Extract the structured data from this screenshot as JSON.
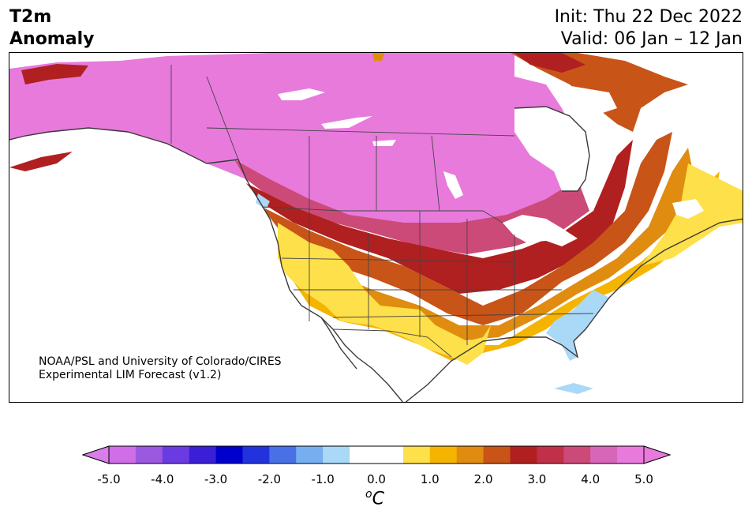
{
  "title": {
    "line1": "T2m",
    "line2": "Anomaly"
  },
  "dates": {
    "init": "Init: Thu 22 Dec 2022",
    "valid": "Valid: 06 Jan – 12 Jan"
  },
  "credit": {
    "line1": "NOAA/PSL and University of Colorado/CIRES",
    "line2": "Experimental LIM Forecast (v1.2)"
  },
  "colorbar": {
    "ticks": [
      "-5.0",
      "-4.0",
      "-3.0",
      "-2.0",
      "-1.0",
      "0.0",
      "1.0",
      "2.0",
      "3.0",
      "4.0",
      "5.0"
    ],
    "unit_sup": "o",
    "unit": "C",
    "colors": [
      "#cf6ee6",
      "#9b59e0",
      "#6a3be0",
      "#3a1fd6",
      "#0000cc",
      "#2233dd",
      "#4a70e6",
      "#77aef0",
      "#aad8f7",
      "#ffffff",
      "#ffffff",
      "#fee04a",
      "#f5b400",
      "#e08c10",
      "#c85418",
      "#b02020",
      "#c03048",
      "#cc4a78",
      "#d866b8",
      "#e87adc"
    ]
  }
}
